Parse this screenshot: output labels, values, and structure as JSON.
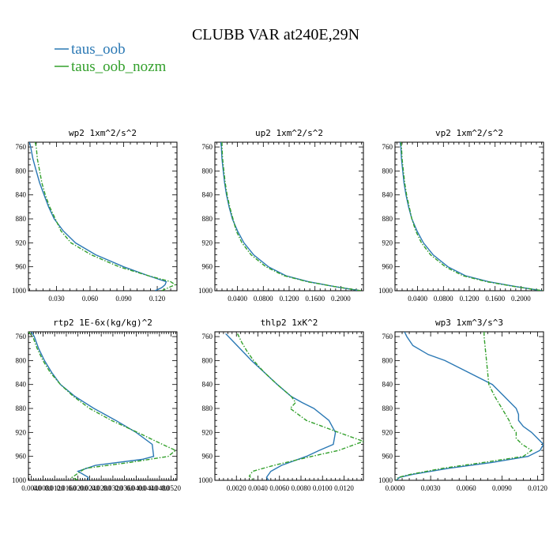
{
  "figure": {
    "title": "CLUBB VAR at240E,29N",
    "legend": [
      {
        "name": "taus_oob",
        "color": "#2a78b4",
        "dash": false
      },
      {
        "name": "taus_oob_nozm",
        "color": "#33a02c",
        "dash": true
      }
    ]
  },
  "chart_data": [
    {
      "type": "line",
      "title": "wp2  1xm^2/s^2",
      "y_axis": "pressure (inverted)",
      "xlim": [
        0.005,
        0.1376
      ],
      "ylim": [
        1000,
        752
      ],
      "xticks": [
        0.03,
        0.06,
        0.09,
        0.12
      ],
      "xtick_labels": [
        "0.030",
        "0.060",
        "0.090",
        "0.120"
      ],
      "yticks": [
        760,
        800,
        840,
        880,
        920,
        960,
        1000
      ],
      "series": [
        {
          "name": "taus_oob",
          "y": [
            752,
            760,
            780,
            800,
            820,
            840,
            860,
            880,
            900,
            920,
            940,
            960,
            975,
            985,
            990,
            995,
            1000
          ],
          "values": [
            0.006,
            0.007,
            0.009,
            0.012,
            0.015,
            0.019,
            0.023,
            0.028,
            0.036,
            0.047,
            0.065,
            0.09,
            0.112,
            0.128,
            0.127,
            0.124,
            0.118
          ]
        },
        {
          "name": "taus_oob_nozm",
          "y": [
            752,
            760,
            780,
            800,
            820,
            840,
            860,
            880,
            900,
            920,
            940,
            960,
            975,
            985,
            990,
            995,
            1000
          ],
          "values": [
            0.011,
            0.012,
            0.013,
            0.015,
            0.017,
            0.02,
            0.024,
            0.029,
            0.034,
            0.043,
            0.061,
            0.086,
            0.112,
            0.132,
            0.136,
            0.13,
            0.124
          ]
        }
      ]
    },
    {
      "type": "line",
      "title": "up2  1xm^2/s^2",
      "y_axis": "pressure (inverted)",
      "xlim": [
        0.005,
        0.235
      ],
      "ylim": [
        1000,
        752
      ],
      "xticks": [
        0.04,
        0.08,
        0.12,
        0.16,
        0.2
      ],
      "xtick_labels": [
        "0.0400",
        "0.0800",
        "0.1200",
        "0.1600",
        "0.2000"
      ],
      "yticks": [
        760,
        800,
        840,
        880,
        920,
        960,
        1000
      ],
      "series": [
        {
          "name": "taus_oob",
          "y": [
            752,
            760,
            780,
            800,
            820,
            840,
            860,
            880,
            900,
            920,
            940,
            960,
            975,
            985,
            993,
            1000
          ],
          "values": [
            0.014,
            0.015,
            0.016,
            0.018,
            0.02,
            0.023,
            0.027,
            0.032,
            0.04,
            0.05,
            0.065,
            0.088,
            0.115,
            0.15,
            0.19,
            0.23
          ]
        },
        {
          "name": "taus_oob_nozm",
          "y": [
            752,
            760,
            780,
            800,
            820,
            840,
            860,
            880,
            900,
            920,
            940,
            960,
            975,
            985,
            993,
            1000
          ],
          "values": [
            0.016,
            0.016,
            0.017,
            0.019,
            0.021,
            0.024,
            0.028,
            0.033,
            0.038,
            0.047,
            0.061,
            0.084,
            0.112,
            0.148,
            0.19,
            0.232
          ]
        }
      ]
    },
    {
      "type": "line",
      "title": "vp2  1xm^2/s^2",
      "y_axis": "pressure (inverted)",
      "xlim": [
        0.005,
        0.235
      ],
      "ylim": [
        1000,
        752
      ],
      "xticks": [
        0.04,
        0.08,
        0.12,
        0.16,
        0.2
      ],
      "xtick_labels": [
        "0.0400",
        "0.0800",
        "0.1200",
        "0.1600",
        "0.2000"
      ],
      "yticks": [
        760,
        800,
        840,
        880,
        920,
        960,
        1000
      ],
      "series": [
        {
          "name": "taus_oob",
          "y": [
            752,
            760,
            780,
            800,
            820,
            840,
            860,
            880,
            900,
            920,
            940,
            960,
            975,
            985,
            993,
            1000
          ],
          "values": [
            0.013,
            0.014,
            0.015,
            0.017,
            0.019,
            0.022,
            0.026,
            0.031,
            0.039,
            0.049,
            0.064,
            0.087,
            0.114,
            0.15,
            0.192,
            0.232
          ]
        },
        {
          "name": "taus_oob_nozm",
          "y": [
            752,
            760,
            780,
            800,
            820,
            840,
            860,
            880,
            900,
            920,
            940,
            960,
            975,
            985,
            993,
            1000
          ],
          "values": [
            0.014,
            0.015,
            0.016,
            0.018,
            0.02,
            0.023,
            0.027,
            0.031,
            0.037,
            0.046,
            0.06,
            0.083,
            0.11,
            0.147,
            0.19,
            0.234
          ]
        }
      ]
    },
    {
      "type": "line",
      "title": "rtp2  1E-6x(kg/kg)^2",
      "y_axis": "pressure (inverted)",
      "xlim": [
        0.0003,
        0.0054
      ],
      "ylim": [
        1000,
        752
      ],
      "xticks": [
        0.0004,
        0.0008,
        0.0012,
        0.0016,
        0.002,
        0.0024,
        0.0028,
        0.0032,
        0.0036,
        0.004,
        0.0044,
        0.0048,
        0.0052
      ],
      "xtick_labels": [
        "0.0040",
        "0.0080",
        "0.0120",
        "0.0160",
        "0.0200",
        "0.0240",
        "0.0280",
        "0.0320",
        "0.0360",
        "0.0400",
        "0.0440",
        "0.0480",
        "0.0520"
      ],
      "yticks": [
        760,
        800,
        840,
        880,
        920,
        960,
        1000
      ],
      "series": [
        {
          "name": "taus_oob",
          "y": [
            752,
            760,
            780,
            800,
            820,
            840,
            860,
            880,
            900,
            920,
            940,
            960,
            965,
            975,
            985,
            995,
            1000
          ],
          "values": [
            0.0004,
            0.0005,
            0.00065,
            0.00085,
            0.0011,
            0.0014,
            0.0019,
            0.00255,
            0.0033,
            0.004,
            0.00455,
            0.0046,
            0.0042,
            0.0026,
            0.002,
            0.00235,
            0.00235
          ]
        },
        {
          "name": "taus_oob_nozm",
          "y": [
            752,
            760,
            780,
            800,
            820,
            840,
            860,
            880,
            900,
            920,
            940,
            950,
            960,
            970,
            980,
            990,
            995,
            1000
          ],
          "values": [
            0.0003,
            0.00045,
            0.0006,
            0.0008,
            0.00105,
            0.0014,
            0.00185,
            0.0024,
            0.00315,
            0.00405,
            0.0049,
            0.00535,
            0.0051,
            0.0038,
            0.00225,
            0.00195,
            0.0018,
            0.002
          ]
        }
      ]
    },
    {
      "type": "line",
      "title": "thlp2  1xK^2",
      "y_axis": "pressure (inverted)",
      "xlim": [
        0.0,
        0.0138
      ],
      "ylim": [
        1000,
        752
      ],
      "xticks": [
        0.002,
        0.004,
        0.006,
        0.008,
        0.01,
        0.012
      ],
      "xtick_labels": [
        "0.0020",
        "0.0040",
        "0.0060",
        "0.0080",
        "0.0100",
        "0.0120"
      ],
      "yticks": [
        760,
        800,
        840,
        880,
        920,
        960,
        1000
      ],
      "series": [
        {
          "name": "taus_oob",
          "y": [
            755,
            770,
            785,
            800,
            820,
            840,
            860,
            870,
            880,
            900,
            920,
            940,
            950,
            960,
            975,
            985,
            995,
            1000
          ],
          "values": [
            0.001,
            0.0018,
            0.0026,
            0.0034,
            0.0046,
            0.0058,
            0.0071,
            0.0081,
            0.0092,
            0.0106,
            0.0112,
            0.011,
            0.0097,
            0.0085,
            0.0062,
            0.0052,
            0.0048,
            0.005
          ]
        },
        {
          "name": "taus_oob_nozm",
          "y": [
            755,
            770,
            785,
            800,
            820,
            840,
            860,
            870,
            880,
            900,
            920,
            935,
            950,
            960,
            975,
            985,
            993,
            1000
          ],
          "values": [
            0.0021,
            0.0025,
            0.003,
            0.0036,
            0.0046,
            0.0058,
            0.0071,
            0.0075,
            0.007,
            0.0085,
            0.0115,
            0.0138,
            0.0115,
            0.009,
            0.0055,
            0.0035,
            0.0032,
            0.0036
          ]
        }
      ]
    },
    {
      "type": "line",
      "title": "wp3  1xm^3/s^3",
      "y_axis": "pressure (inverted)",
      "xlim": [
        0.0,
        0.0125
      ],
      "ylim": [
        1000,
        752
      ],
      "xticks": [
        0.0,
        0.003,
        0.006,
        0.009,
        0.012
      ],
      "xtick_labels": [
        "0.0000",
        "0.0030",
        "0.0060",
        "0.0090",
        "0.0120"
      ],
      "yticks": [
        760,
        800,
        840,
        880,
        920,
        960,
        1000
      ],
      "series": [
        {
          "name": "taus_oob",
          "y": [
            752,
            760,
            775,
            790,
            800,
            820,
            840,
            860,
            880,
            890,
            900,
            910,
            920,
            940,
            950,
            960,
            970,
            980,
            990,
            995,
            1000
          ],
          "values": [
            0.0008,
            0.001,
            0.0015,
            0.0028,
            0.0042,
            0.0062,
            0.0082,
            0.0092,
            0.0102,
            0.0104,
            0.0104,
            0.0108,
            0.0115,
            0.0125,
            0.0122,
            0.0112,
            0.0082,
            0.0045,
            0.0015,
            0.0004,
            0.0001
          ]
        },
        {
          "name": "taus_oob_nozm",
          "y": [
            752,
            760,
            780,
            800,
            820,
            840,
            860,
            880,
            900,
            910,
            920,
            930,
            940,
            950,
            960,
            970,
            980,
            990,
            995,
            1000
          ],
          "values": [
            0.0075,
            0.0075,
            0.0076,
            0.0077,
            0.0078,
            0.0079,
            0.0084,
            0.009,
            0.0096,
            0.0098,
            0.0102,
            0.0102,
            0.0107,
            0.0115,
            0.0108,
            0.0075,
            0.004,
            0.0013,
            0.0003,
            0.0001
          ]
        }
      ]
    }
  ]
}
